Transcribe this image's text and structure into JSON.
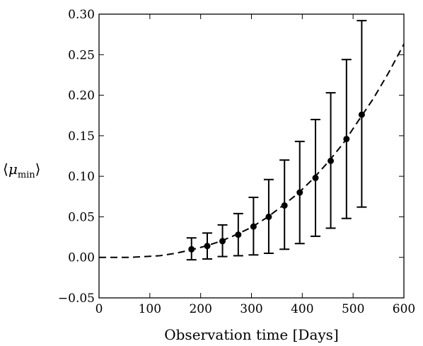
{
  "chart_data": {
    "type": "scatter",
    "title": "",
    "xlabel": "Observation time [Days]",
    "ylabel": {
      "left_bracket": "⟨",
      "symbol": "μ",
      "subscript": "min",
      "right_bracket": "⟩"
    },
    "xlim": [
      0,
      600
    ],
    "ylim": [
      -0.05,
      0.3
    ],
    "x_ticks": [
      0,
      100,
      200,
      300,
      400,
      500,
      600
    ],
    "x_tick_labels": [
      "0",
      "100",
      "200",
      "300",
      "400",
      "500",
      "600"
    ],
    "y_ticks": [
      -0.05,
      0.0,
      0.05,
      0.1,
      0.15,
      0.2,
      0.25,
      0.3
    ],
    "y_tick_labels": [
      "−0.05",
      "0.00",
      "0.05",
      "0.10",
      "0.15",
      "0.20",
      "0.25",
      "0.30"
    ],
    "grid": false,
    "series": [
      {
        "kind": "points-with-errorbars",
        "color": "#000000",
        "points": [
          {
            "x": 182,
            "y": 0.01,
            "y_low": -0.003,
            "y_high": 0.024
          },
          {
            "x": 213,
            "y": 0.014,
            "y_low": -0.002,
            "y_high": 0.03
          },
          {
            "x": 243,
            "y": 0.02,
            "y_low": 0.001,
            "y_high": 0.04
          },
          {
            "x": 274,
            "y": 0.028,
            "y_low": 0.002,
            "y_high": 0.054
          },
          {
            "x": 304,
            "y": 0.038,
            "y_low": 0.003,
            "y_high": 0.074
          },
          {
            "x": 334,
            "y": 0.05,
            "y_low": 0.005,
            "y_high": 0.096
          },
          {
            "x": 365,
            "y": 0.064,
            "y_low": 0.01,
            "y_high": 0.12
          },
          {
            "x": 395,
            "y": 0.08,
            "y_low": 0.017,
            "y_high": 0.143
          },
          {
            "x": 426,
            "y": 0.098,
            "y_low": 0.026,
            "y_high": 0.17
          },
          {
            "x": 456,
            "y": 0.119,
            "y_low": 0.036,
            "y_high": 0.203
          },
          {
            "x": 487,
            "y": 0.146,
            "y_low": 0.048,
            "y_high": 0.244
          },
          {
            "x": 517,
            "y": 0.176,
            "y_low": 0.062,
            "y_high": 0.292
          }
        ]
      },
      {
        "kind": "dashed-curve",
        "color": "#000000",
        "x": [
          0,
          30,
          60,
          90,
          120,
          150,
          180,
          210,
          240,
          270,
          300,
          330,
          360,
          390,
          420,
          450,
          480,
          510,
          540,
          570,
          600
        ],
        "y": [
          0.0,
          0.0,
          0.0,
          0.001,
          0.002,
          0.005,
          0.009,
          0.014,
          0.02,
          0.028,
          0.037,
          0.049,
          0.063,
          0.078,
          0.096,
          0.117,
          0.14,
          0.168,
          0.196,
          0.228,
          0.263
        ]
      }
    ]
  }
}
